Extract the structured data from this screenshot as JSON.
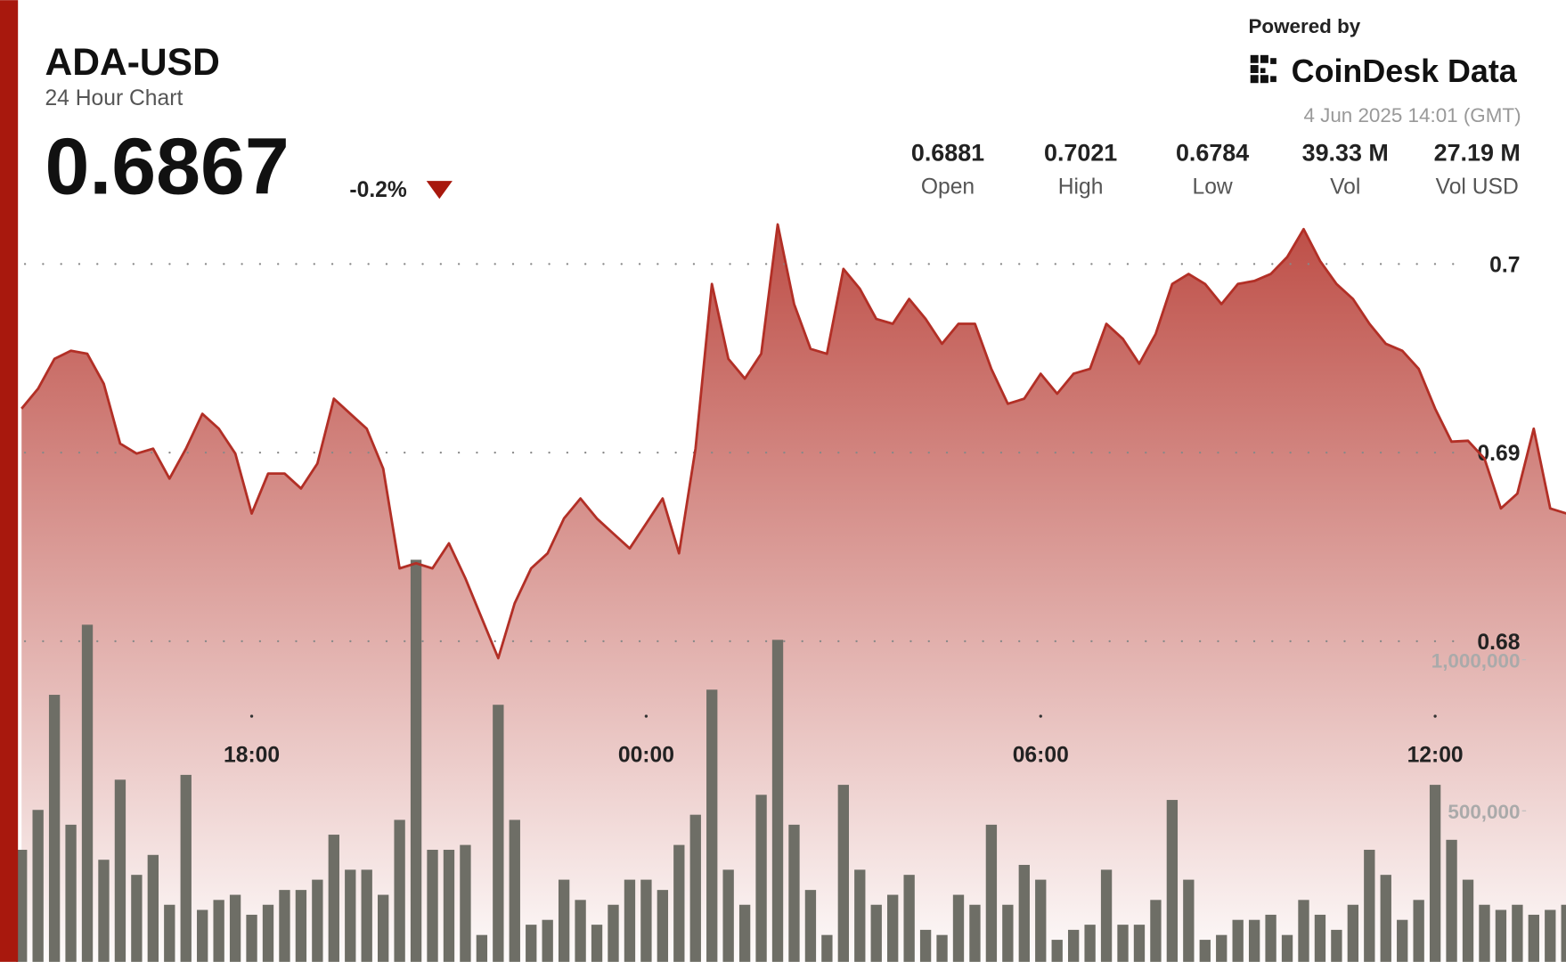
{
  "header": {
    "symbol": "ADA-USD",
    "subtitle": "24 Hour Chart",
    "price": 0.6867,
    "change": "-0.2%",
    "powered_by": "Powered by",
    "brand": "CoinDesk Data",
    "timestamp": "4 Jun 2025 14:01 (GMT)",
    "stats": [
      {
        "value": 0.6881,
        "label": "Open"
      },
      {
        "value": 0.7021,
        "label": "High"
      },
      {
        "value": 0.6784,
        "label": "Low"
      },
      {
        "value": "39.33 M",
        "label": "Vol"
      },
      {
        "value": "27.19 M",
        "label": "Vol USD"
      }
    ]
  },
  "chart_data": {
    "type": "line",
    "categories": [
      null,
      null,
      null,
      null,
      null,
      null,
      null,
      null,
      null,
      null,
      null,
      null,
      null,
      null,
      "18:00",
      null,
      null,
      null,
      null,
      null,
      null,
      null,
      null,
      null,
      null,
      null,
      null,
      null,
      null,
      null,
      null,
      null,
      null,
      null,
      null,
      null,
      null,
      null,
      "00:00",
      null,
      null,
      null,
      null,
      null,
      null,
      null,
      null,
      null,
      null,
      null,
      null,
      null,
      null,
      null,
      null,
      null,
      null,
      null,
      null,
      null,
      null,
      null,
      "06:00",
      null,
      null,
      null,
      null,
      null,
      null,
      null,
      null,
      null,
      null,
      null,
      null,
      null,
      null,
      null,
      null,
      null,
      null,
      null,
      null,
      null,
      null,
      null,
      "12:00",
      null,
      null,
      null,
      null,
      null,
      null,
      null,
      null
    ],
    "series": [
      {
        "color": "#b22f26",
        "values": [
          0.69233,
          0.69339,
          0.69497,
          0.6954,
          0.69524,
          0.69365,
          0.69048,
          0.68995,
          0.69021,
          0.68862,
          0.69021,
          0.69206,
          0.69127,
          0.68995,
          0.68677,
          0.68889,
          0.68889,
          0.6881,
          0.68942,
          0.69286,
          0.69206,
          0.69127,
          0.68915,
          0.68386,
          0.68413,
          0.68386,
          0.68519,
          0.68333,
          0.68122,
          0.6791,
          0.68201,
          0.68386,
          0.68466,
          0.68651,
          0.68757,
          0.68651,
          0.68571,
          0.68492,
          0.68624,
          0.68757,
          0.68466,
          0.69021,
          0.69894,
          0.69497,
          0.69392,
          0.69524,
          0.7021,
          0.69788,
          0.6955,
          0.69524,
          0.69974,
          0.69868,
          0.69709,
          0.69683,
          0.69815,
          0.69709,
          0.69577,
          0.69683,
          0.69683,
          0.69444,
          0.69259,
          0.69286,
          0.69418,
          0.69312,
          0.69418,
          0.69444,
          0.69683,
          0.69603,
          0.69471,
          0.6963,
          0.69894,
          0.69947,
          0.69894,
          0.69788,
          0.69894,
          0.6991,
          0.69947,
          0.70037,
          0.70185,
          0.70016,
          0.69894,
          0.69815,
          0.69683,
          0.69577,
          0.6954,
          0.69444,
          0.69233,
          0.69058,
          0.69063,
          0.68968,
          0.68704,
          0.68783,
          0.69127,
          0.68704,
          0.68677
        ]
      },
      {
        "type": "bar",
        "axis": "y2",
        "color": "#6e6e66",
        "values": [
          371000,
          503000,
          884000,
          454000,
          1116000,
          338000,
          603000,
          288000,
          354000,
          189000,
          619000,
          172000,
          205000,
          222000,
          156000,
          189000,
          238000,
          238000,
          272000,
          421000,
          305000,
          305000,
          222000,
          470000,
          1331000,
          371000,
          371000,
          387000,
          89000,
          851000,
          470000,
          123000,
          139000,
          272000,
          205000,
          123000,
          189000,
          272000,
          272000,
          238000,
          387000,
          487000,
          901000,
          305000,
          189000,
          553000,
          1066000,
          454000,
          238000,
          89000,
          586000,
          305000,
          189000,
          222000,
          288000,
          106000,
          89000,
          222000,
          189000,
          454000,
          189000,
          321000,
          272000,
          73000,
          106000,
          123000,
          305000,
          123000,
          123000,
          205000,
          536000,
          272000,
          73000,
          89000,
          139000,
          139000,
          156000,
          89000,
          205000,
          156000,
          106000,
          189000,
          371000,
          288000,
          139000,
          205000,
          586000,
          404000,
          272000,
          189000,
          172000,
          189000,
          156000,
          172000,
          189000
        ]
      }
    ],
    "ylim": [
      0.663,
      0.7034
    ],
    "yticks": [
      0.68,
      0.69,
      0.7
    ],
    "y2lim": [
      0,
      1600000
    ],
    "y2ticks": [
      {
        "value": 500000,
        "label": "500,000"
      },
      {
        "value": 1000000,
        "label": "1,000,000"
      }
    ],
    "grid": true
  }
}
